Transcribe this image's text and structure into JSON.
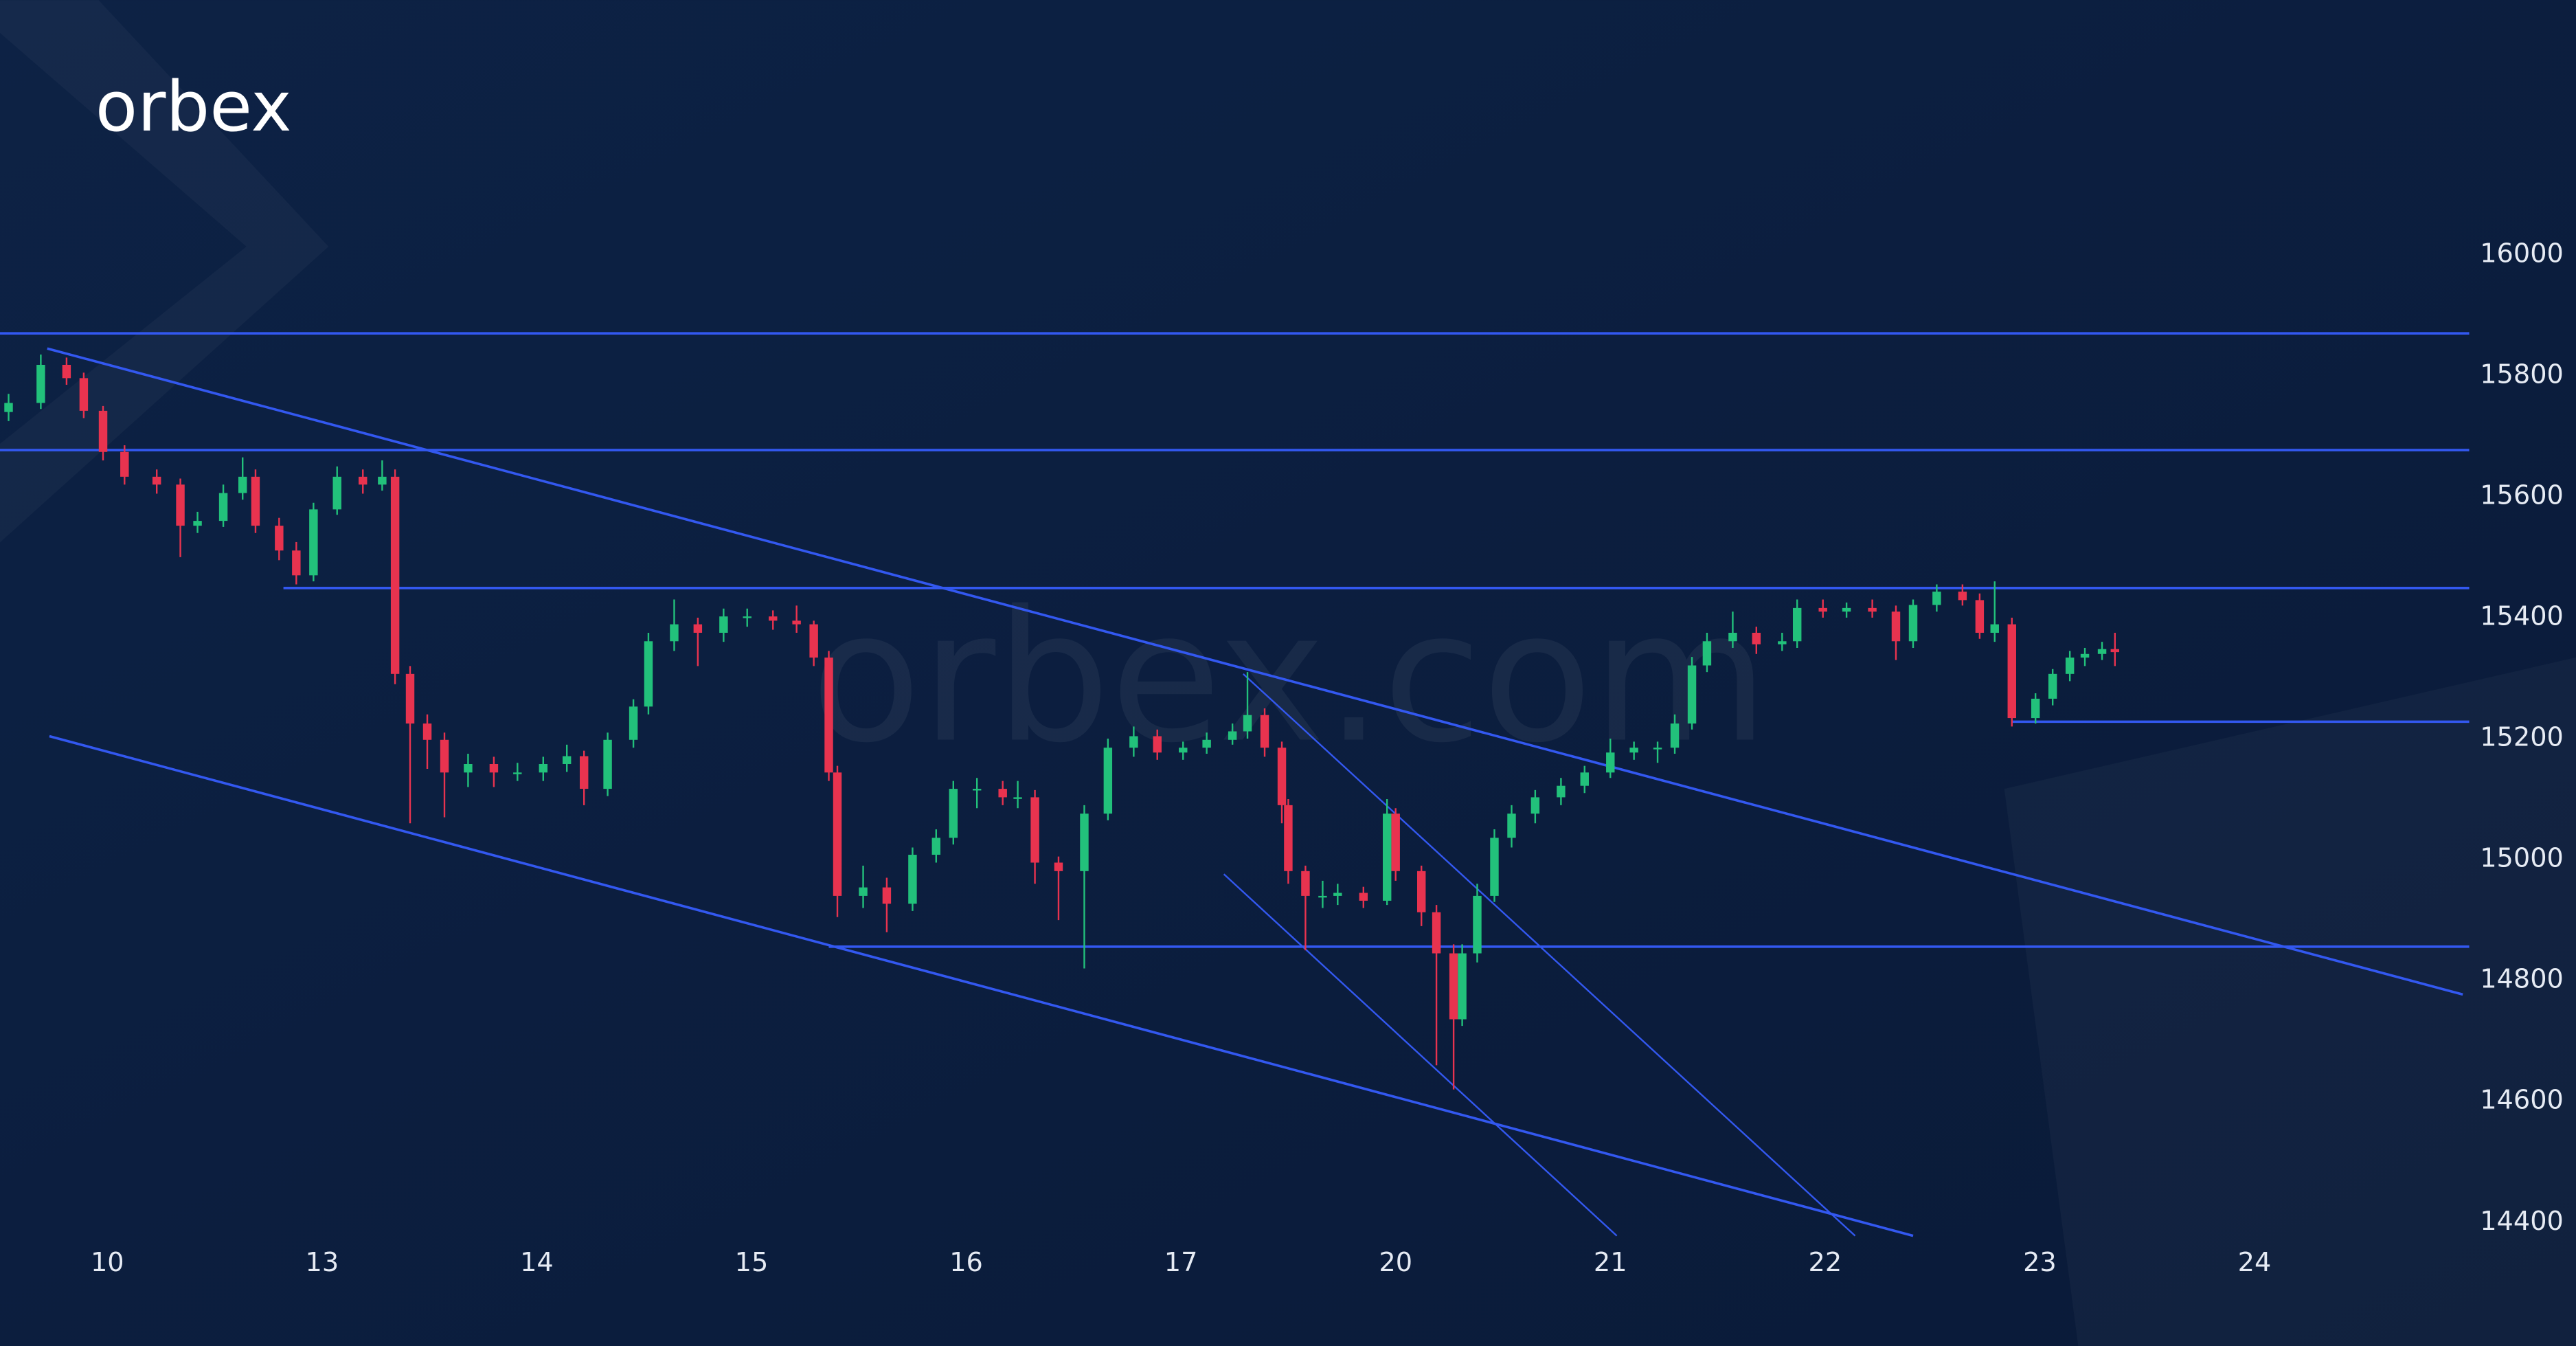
{
  "logo": "orbex",
  "watermark": "orbex.com",
  "chart_data": {
    "type": "candlestick",
    "x": [
      -0.46,
      -0.31,
      -0.19,
      -0.11,
      -0.02,
      0.08,
      0.23,
      0.34,
      0.42,
      0.54,
      0.63,
      0.69,
      0.8,
      0.88,
      0.96,
      1.07,
      1.19,
      1.28,
      1.34,
      1.41,
      1.49,
      1.57,
      1.68,
      1.8,
      1.91,
      2.03,
      2.14,
      2.22,
      2.33,
      2.45,
      2.52,
      2.64,
      2.75,
      2.87,
      2.98,
      3.1,
      3.21,
      3.29,
      3.36,
      3.4,
      3.52,
      3.63,
      3.75,
      3.86,
      3.94,
      4.05,
      4.17,
      4.24,
      4.32,
      4.43,
      4.55,
      4.66,
      4.78,
      4.89,
      5.01,
      5.12,
      5.24,
      5.31,
      5.39,
      5.47,
      5.5,
      5.58,
      5.66,
      5.73,
      5.85,
      5.96,
      6.0,
      6.12,
      6.19,
      6.27,
      6.31,
      6.38,
      6.46,
      6.54,
      6.65,
      6.77,
      6.88,
      7.0,
      7.11,
      7.22,
      7.3,
      7.38,
      7.45,
      7.57,
      7.68,
      7.8,
      7.87,
      7.99,
      8.1,
      8.22,
      8.33,
      8.41,
      8.52,
      8.64,
      8.72,
      8.79,
      8.87,
      8.98,
      9.06,
      9.14,
      9.21,
      9.29,
      9.35
    ],
    "open": [
      15740,
      15755,
      15818,
      15796,
      15742,
      15674,
      15633,
      15620,
      15552,
      15560,
      15606,
      15633,
      15552,
      15511,
      15470,
      15579,
      15633,
      15620,
      15633,
      15307,
      15225,
      15198,
      15144,
      15158,
      15144,
      15144,
      15158,
      15171,
      15117,
      15198,
      15253,
      15361,
      15389,
      15375,
      15402,
      15402,
      15395,
      15389,
      15334,
      15144,
      14940,
      14954,
      14927,
      15008,
      15036,
      15117,
      15117,
      15103,
      15103,
      14995,
      14981,
      15076,
      15185,
      15204,
      15177,
      15185,
      15198,
      15212,
      15239,
      15185,
      15090,
      14981,
      14940,
      14940,
      14945,
      14932,
      15076,
      14981,
      14913,
      14845,
      14736,
      14845,
      14940,
      15036,
      15076,
      15103,
      15122,
      15144,
      15177,
      15185,
      15185,
      15225,
      15321,
      15361,
      15375,
      15356,
      15361,
      15416,
      15410,
      15416,
      15410,
      15361,
      15421,
      15443,
      15429,
      15375,
      15389,
      15234,
      15266,
      15307,
      15334,
      15340,
      15348
    ],
    "high": [
      15770,
      15835,
      15830,
      15805,
      15750,
      15685,
      15645,
      15630,
      15575,
      15620,
      15665,
      15645,
      15565,
      15525,
      15590,
      15650,
      15645,
      15660,
      15645,
      15320,
      15240,
      15210,
      15175,
      15170,
      15160,
      15170,
      15190,
      15180,
      15210,
      15265,
      15375,
      15430,
      15400,
      15415,
      15415,
      15412,
      15420,
      15395,
      15345,
      15155,
      14990,
      14970,
      15020,
      15050,
      15130,
      15135,
      15130,
      15130,
      15115,
      15005,
      15090,
      15200,
      15220,
      15215,
      15195,
      15210,
      15225,
      15310,
      15250,
      15195,
      15100,
      14990,
      14965,
      14960,
      14955,
      15100,
      15085,
      14990,
      14925,
      14860,
      14860,
      14960,
      15050,
      15090,
      15115,
      15135,
      15155,
      15200,
      15195,
      15195,
      15240,
      15335,
      15375,
      15410,
      15385,
      15375,
      15430,
      15430,
      15425,
      15430,
      15420,
      15430,
      15455,
      15455,
      15440,
      15460,
      15400,
      15275,
      15315,
      15345,
      15350,
      15360,
      15375
    ],
    "low": [
      15725,
      15745,
      15785,
      15730,
      15660,
      15620,
      15605,
      15500,
      15540,
      15550,
      15595,
      15540,
      15495,
      15455,
      15460,
      15570,
      15605,
      15610,
      15290,
      15060,
      15150,
      15070,
      15120,
      15120,
      15130,
      15130,
      15145,
      15090,
      15105,
      15185,
      15240,
      15345,
      15320,
      15360,
      15385,
      15380,
      15375,
      15320,
      15130,
      14905,
      14920,
      14880,
      14915,
      14995,
      15025,
      15085,
      15090,
      15085,
      14960,
      14900,
      14820,
      15065,
      15170,
      15165,
      15165,
      15175,
      15190,
      15200,
      15170,
      15060,
      14960,
      14850,
      14920,
      14925,
      14920,
      14925,
      14965,
      14890,
      14660,
      14620,
      14725,
      14830,
      14930,
      15020,
      15060,
      15090,
      15110,
      15135,
      15165,
      15160,
      15175,
      15215,
      15310,
      15350,
      15340,
      15345,
      15350,
      15400,
      15400,
      15400,
      15330,
      15350,
      15410,
      15420,
      15365,
      15360,
      15220,
      15225,
      15255,
      15295,
      15320,
      15330,
      15320
    ],
    "close": [
      15755,
      15818,
      15796,
      15742,
      15674,
      15633,
      15620,
      15552,
      15560,
      15606,
      15633,
      15552,
      15511,
      15470,
      15579,
      15633,
      15620,
      15633,
      15307,
      15225,
      15198,
      15144,
      15158,
      15144,
      15144,
      15158,
      15171,
      15117,
      15198,
      15253,
      15361,
      15389,
      15375,
      15402,
      15402,
      15395,
      15389,
      15334,
      15144,
      14940,
      14954,
      14927,
      15008,
      15036,
      15117,
      15117,
      15103,
      15103,
      14995,
      14981,
      15076,
      15185,
      15204,
      15177,
      15185,
      15198,
      15212,
      15239,
      15185,
      15090,
      14981,
      14940,
      14940,
      14945,
      14932,
      15076,
      14981,
      14913,
      14845,
      14736,
      14845,
      14940,
      15036,
      15076,
      15103,
      15122,
      15144,
      15177,
      15185,
      15185,
      15225,
      15321,
      15361,
      15375,
      15356,
      15361,
      15416,
      15410,
      15416,
      15410,
      15361,
      15421,
      15443,
      15429,
      15375,
      15389,
      15234,
      15266,
      15307,
      15334,
      15340,
      15348,
      15343
    ],
    "colors": {
      "up": "#22c17b",
      "down": "#e8334f"
    },
    "line_color": "#3358f0",
    "xlim": [
      -0.5,
      11
    ],
    "ylim": [
      14196,
      16421
    ],
    "xticks": [
      {
        "value": 0,
        "label": "10"
      },
      {
        "value": 1,
        "label": "13"
      },
      {
        "value": 2,
        "label": "14"
      },
      {
        "value": 3,
        "label": "15"
      },
      {
        "value": 4,
        "label": "16"
      },
      {
        "value": 5,
        "label": "17"
      },
      {
        "value": 6,
        "label": "20"
      },
      {
        "value": 7,
        "label": "21"
      },
      {
        "value": 8,
        "label": "22"
      },
      {
        "value": 9,
        "label": "23"
      },
      {
        "value": 10,
        "label": "24"
      }
    ],
    "yticks": [
      14400,
      14600,
      14800,
      15000,
      15200,
      15400,
      15600,
      15800,
      16000
    ],
    "levels": [
      {
        "value": 15870,
        "from": -0.5
      },
      {
        "value": 15677,
        "from": -0.5
      },
      {
        "value": 15449,
        "from": 0.82
      },
      {
        "value": 15228,
        "from": 8.87
      },
      {
        "value": 14856,
        "from": 3.36
      }
    ],
    "trendlines": [
      {
        "x": [
          -0.28,
          10.97
        ],
        "y": [
          15845,
          14777
        ]
      },
      {
        "x": [
          -0.27,
          8.41
        ],
        "y": [
          15204,
          14378
        ]
      },
      {
        "x": [
          5.29,
          8.14
        ],
        "y": [
          15307,
          14378
        ],
        "thin": true
      },
      {
        "x": [
          5.2,
          7.03
        ],
        "y": [
          14976,
          14378
        ],
        "thin": true
      }
    ]
  }
}
